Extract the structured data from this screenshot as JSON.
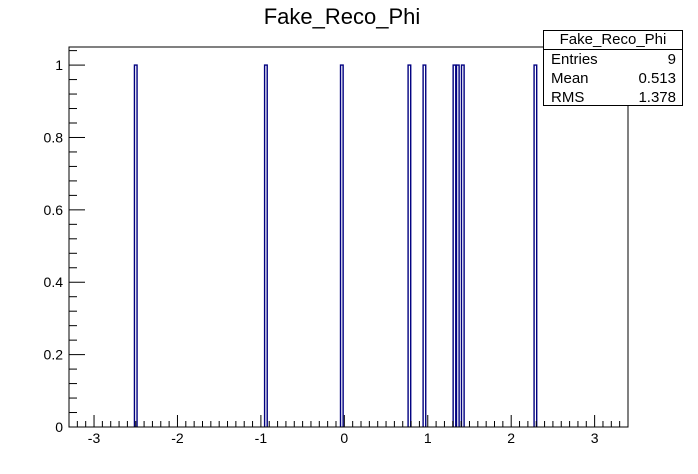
{
  "chart_data": {
    "type": "bar",
    "title": "Fake_Reco_Phi",
    "xlabel": "",
    "ylabel": "",
    "xlim": [
      -3.3,
      3.4
    ],
    "ylim": [
      0,
      1.05
    ],
    "x_ticks": [
      "-3",
      "-2",
      "-1",
      "0",
      "1",
      "2",
      "3"
    ],
    "x_tick_values": [
      -3,
      -2,
      -1,
      0,
      1,
      2,
      3
    ],
    "y_ticks": [
      "0",
      "0.2",
      "0.4",
      "0.6",
      "0.8",
      "1"
    ],
    "y_tick_values": [
      0,
      0.2,
      0.4,
      0.6,
      0.8,
      1
    ],
    "grid": false,
    "bin_width": 0.0314,
    "entries": [
      {
        "x": -2.5,
        "value": 1
      },
      {
        "x": -0.94,
        "value": 1
      },
      {
        "x": -0.03,
        "value": 1
      },
      {
        "x": 0.78,
        "value": 1
      },
      {
        "x": 0.96,
        "value": 1
      },
      {
        "x": 1.32,
        "value": 1
      },
      {
        "x": 1.36,
        "value": 1
      },
      {
        "x": 1.42,
        "value": 1
      },
      {
        "x": 2.29,
        "value": 1
      }
    ],
    "colors": {
      "line": "#000080",
      "axis": "#000000"
    }
  },
  "stats_box": {
    "title": "Fake_Reco_Phi",
    "rows": [
      {
        "label": "Entries",
        "value": "9"
      },
      {
        "label": "Mean",
        "value": "0.513"
      },
      {
        "label": "RMS",
        "value": "1.378"
      }
    ]
  }
}
